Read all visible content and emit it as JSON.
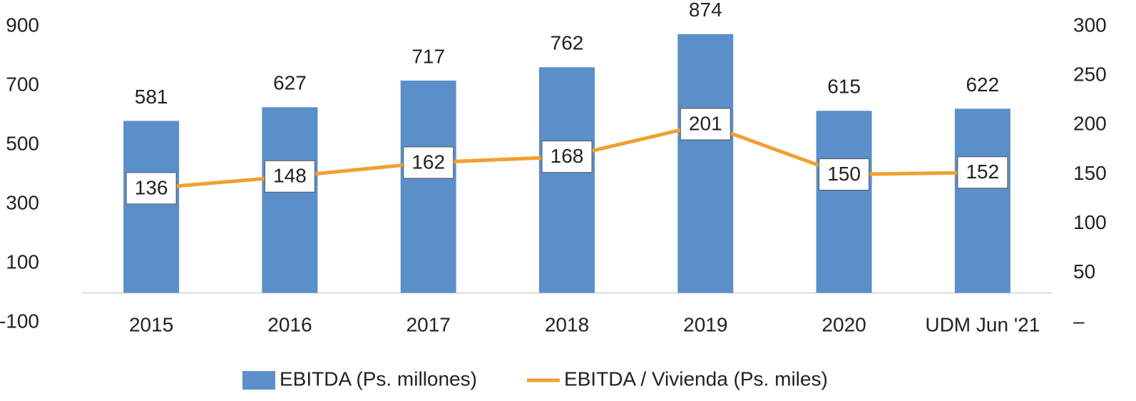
{
  "chart_data": {
    "type": "bar_line",
    "categories": [
      "2015",
      "2016",
      "2017",
      "2018",
      "2019",
      "2020",
      "UDM Jun '21"
    ],
    "series": [
      {
        "name": "EBITDA (Ps. millones)",
        "type": "bar",
        "color": "#5b8fc9",
        "values": [
          581,
          627,
          717,
          762,
          874,
          615,
          622
        ]
      },
      {
        "name": "EBITDA / Vivienda (Ps. miles)",
        "type": "line",
        "axis": "y2",
        "color": "#f0a030",
        "values": [
          136,
          148,
          162,
          168,
          201,
          150,
          152
        ]
      }
    ],
    "ylim": [
      -100,
      900
    ],
    "yticks": [
      -100,
      100,
      300,
      500,
      700,
      900
    ],
    "y2lim": [
      0,
      300
    ],
    "y2ticks": [
      {
        "value": 0,
        "label": "–"
      },
      50,
      100,
      150,
      200,
      250,
      300
    ],
    "legend": "bottom"
  }
}
